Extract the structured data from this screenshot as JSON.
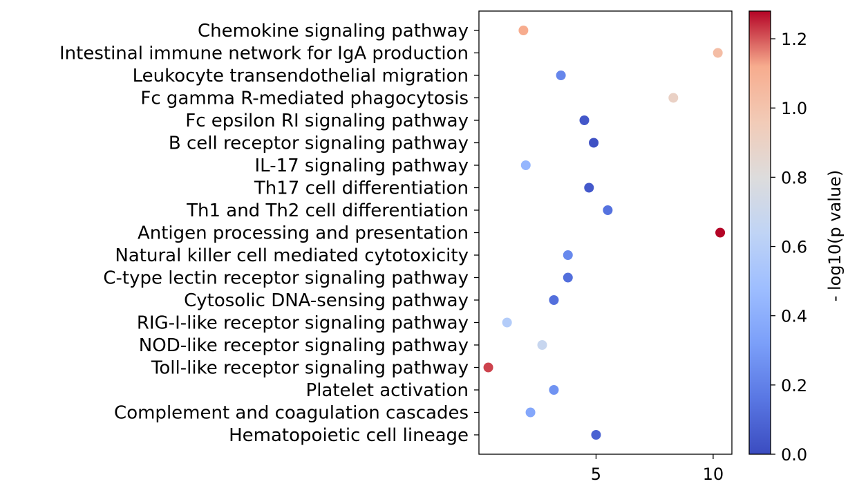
{
  "chart_data": {
    "type": "scatter",
    "title": "",
    "xlabel": "",
    "ylabel": "",
    "categories": [
      "Chemokine signaling pathway",
      "Intestinal immune network for IgA production",
      "Leukocyte transendothelial migration",
      "Fc gamma R-mediated phagocytosis",
      "Fc epsilon RI signaling pathway",
      "B cell receptor signaling pathway",
      "IL-17 signaling pathway",
      "Th17 cell differentiation",
      "Th1 and Th2 cell differentiation",
      "Antigen processing and presentation",
      "Natural killer cell mediated cytotoxicity",
      "C-type lectin receptor signaling pathway",
      "Cytosolic DNA-sensing pathway",
      "RIG-I-like receptor signaling pathway",
      "NOD-like receptor signaling pathway",
      "Toll-like receptor signaling pathway",
      "Platelet activation",
      "Complement and coagulation cascades",
      "Hematopoietic cell lineage"
    ],
    "x": [
      1.9,
      10.2,
      3.5,
      8.3,
      4.5,
      4.9,
      2.0,
      4.7,
      5.5,
      10.3,
      3.8,
      3.8,
      3.2,
      1.2,
      2.7,
      0.4,
      3.2,
      2.2,
      5.0
    ],
    "color_values": [
      1.12,
      1.03,
      0.22,
      0.9,
      0.04,
      0.02,
      0.44,
      0.05,
      0.14,
      1.28,
      0.23,
      0.13,
      0.13,
      0.58,
      0.68,
      1.22,
      0.27,
      0.36,
      0.08
    ],
    "xticks": [
      5,
      10
    ],
    "xlim": [
      0.0,
      10.8
    ],
    "colorbar": {
      "label": "- log10(p value)",
      "range": [
        0.0,
        1.28
      ],
      "ticks": [
        "0.0",
        "0.2",
        "0.4",
        "0.6",
        "0.8",
        "1.0",
        "1.2"
      ],
      "colormap": "coolwarm"
    },
    "grid": false,
    "legend": "none"
  }
}
